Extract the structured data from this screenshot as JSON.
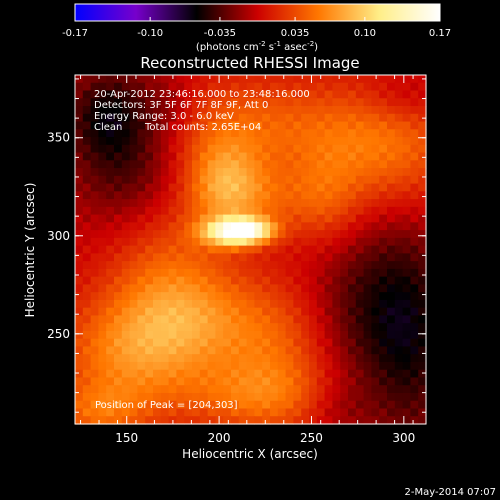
{
  "chart_data": {
    "type": "heatmap",
    "title": "Reconstructed RHESSI Image",
    "colorbar": {
      "range": [
        -0.17,
        0.17
      ],
      "ticks": [
        "-0.17",
        "-0.10",
        "-0.035",
        "0.035",
        "0.10",
        "0.17"
      ],
      "tick_values": [
        -0.17,
        -0.1,
        -0.035,
        0.035,
        0.1,
        0.17
      ],
      "unit_main": "(photons cm",
      "unit_exp1": "-2",
      "unit_mid": " s",
      "unit_exp2": "-1",
      "unit_tail": " asec",
      "unit_exp3": "-2",
      "unit_close": ")",
      "colormap": [
        "#0000ff",
        "#7700cc",
        "#000000",
        "#cc0000",
        "#ff7700",
        "#ffee88",
        "#ffffff"
      ]
    },
    "annotations": {
      "line1": "20-Apr-2012 23:46:16.000 to 23:48:16.000",
      "line2": "Detectors: 3F 5F 6F 7F 8F 9F, Att 0",
      "line3": "Energy Range: 3.0 - 6.0 keV",
      "line4_a": "Clean",
      "line4_b": "Total counts: 2.65E+04",
      "peak": "Position of Peak = [204,303]"
    },
    "xlabel": "Heliocentric X (arcsec)",
    "ylabel": "Heliocentric Y (arcsec)",
    "xlim": [
      122,
      312
    ],
    "ylim": [
      204,
      382
    ],
    "x_ticks": [
      150,
      200,
      250,
      300
    ],
    "y_ticks": [
      250,
      300,
      350
    ],
    "peak_position": [
      204,
      303
    ],
    "blobs": [
      {
        "x": 208,
        "y": 302,
        "sx": 12,
        "sy": 5,
        "amp": 0.13
      },
      {
        "x": 218,
        "y": 303,
        "sx": 9,
        "sy": 4,
        "amp": 0.06
      },
      {
        "x": 203,
        "y": 328,
        "sx": 14,
        "sy": 15,
        "amp": 0.055
      },
      {
        "x": 220,
        "y": 318,
        "sx": 22,
        "sy": 12,
        "amp": 0.035
      },
      {
        "x": 215,
        "y": 355,
        "sx": 40,
        "sy": 18,
        "amp": 0.045
      },
      {
        "x": 172,
        "y": 276,
        "sx": 24,
        "sy": 30,
        "amp": 0.045
      },
      {
        "x": 190,
        "y": 255,
        "sx": 28,
        "sy": 18,
        "amp": 0.04
      },
      {
        "x": 148,
        "y": 238,
        "sx": 26,
        "sy": 20,
        "amp": 0.05
      },
      {
        "x": 232,
        "y": 238,
        "sx": 22,
        "sy": 26,
        "amp": 0.04
      },
      {
        "x": 215,
        "y": 218,
        "sx": 30,
        "sy": 12,
        "amp": 0.035
      },
      {
        "x": 290,
        "y": 345,
        "sx": 28,
        "sy": 22,
        "amp": 0.05
      },
      {
        "x": 258,
        "y": 318,
        "sx": 14,
        "sy": 18,
        "amp": 0.03
      },
      {
        "x": 135,
        "y": 210,
        "sx": 18,
        "sy": 10,
        "amp": 0.04
      },
      {
        "x": 150,
        "y": 345,
        "sx": 22,
        "sy": 28,
        "amp": -0.05
      },
      {
        "x": 138,
        "y": 362,
        "sx": 14,
        "sy": 14,
        "amp": -0.03
      },
      {
        "x": 175,
        "y": 365,
        "sx": 10,
        "sy": 10,
        "amp": -0.015
      },
      {
        "x": 285,
        "y": 262,
        "sx": 25,
        "sy": 32,
        "amp": -0.045
      },
      {
        "x": 305,
        "y": 240,
        "sx": 15,
        "sy": 40,
        "amp": -0.03
      },
      {
        "x": 265,
        "y": 212,
        "sx": 14,
        "sy": 10,
        "amp": -0.015
      },
      {
        "x": 300,
        "y": 370,
        "sx": 16,
        "sy": 10,
        "amp": -0.02
      }
    ]
  },
  "footer": {
    "date": "2-May-2014 07:07"
  }
}
